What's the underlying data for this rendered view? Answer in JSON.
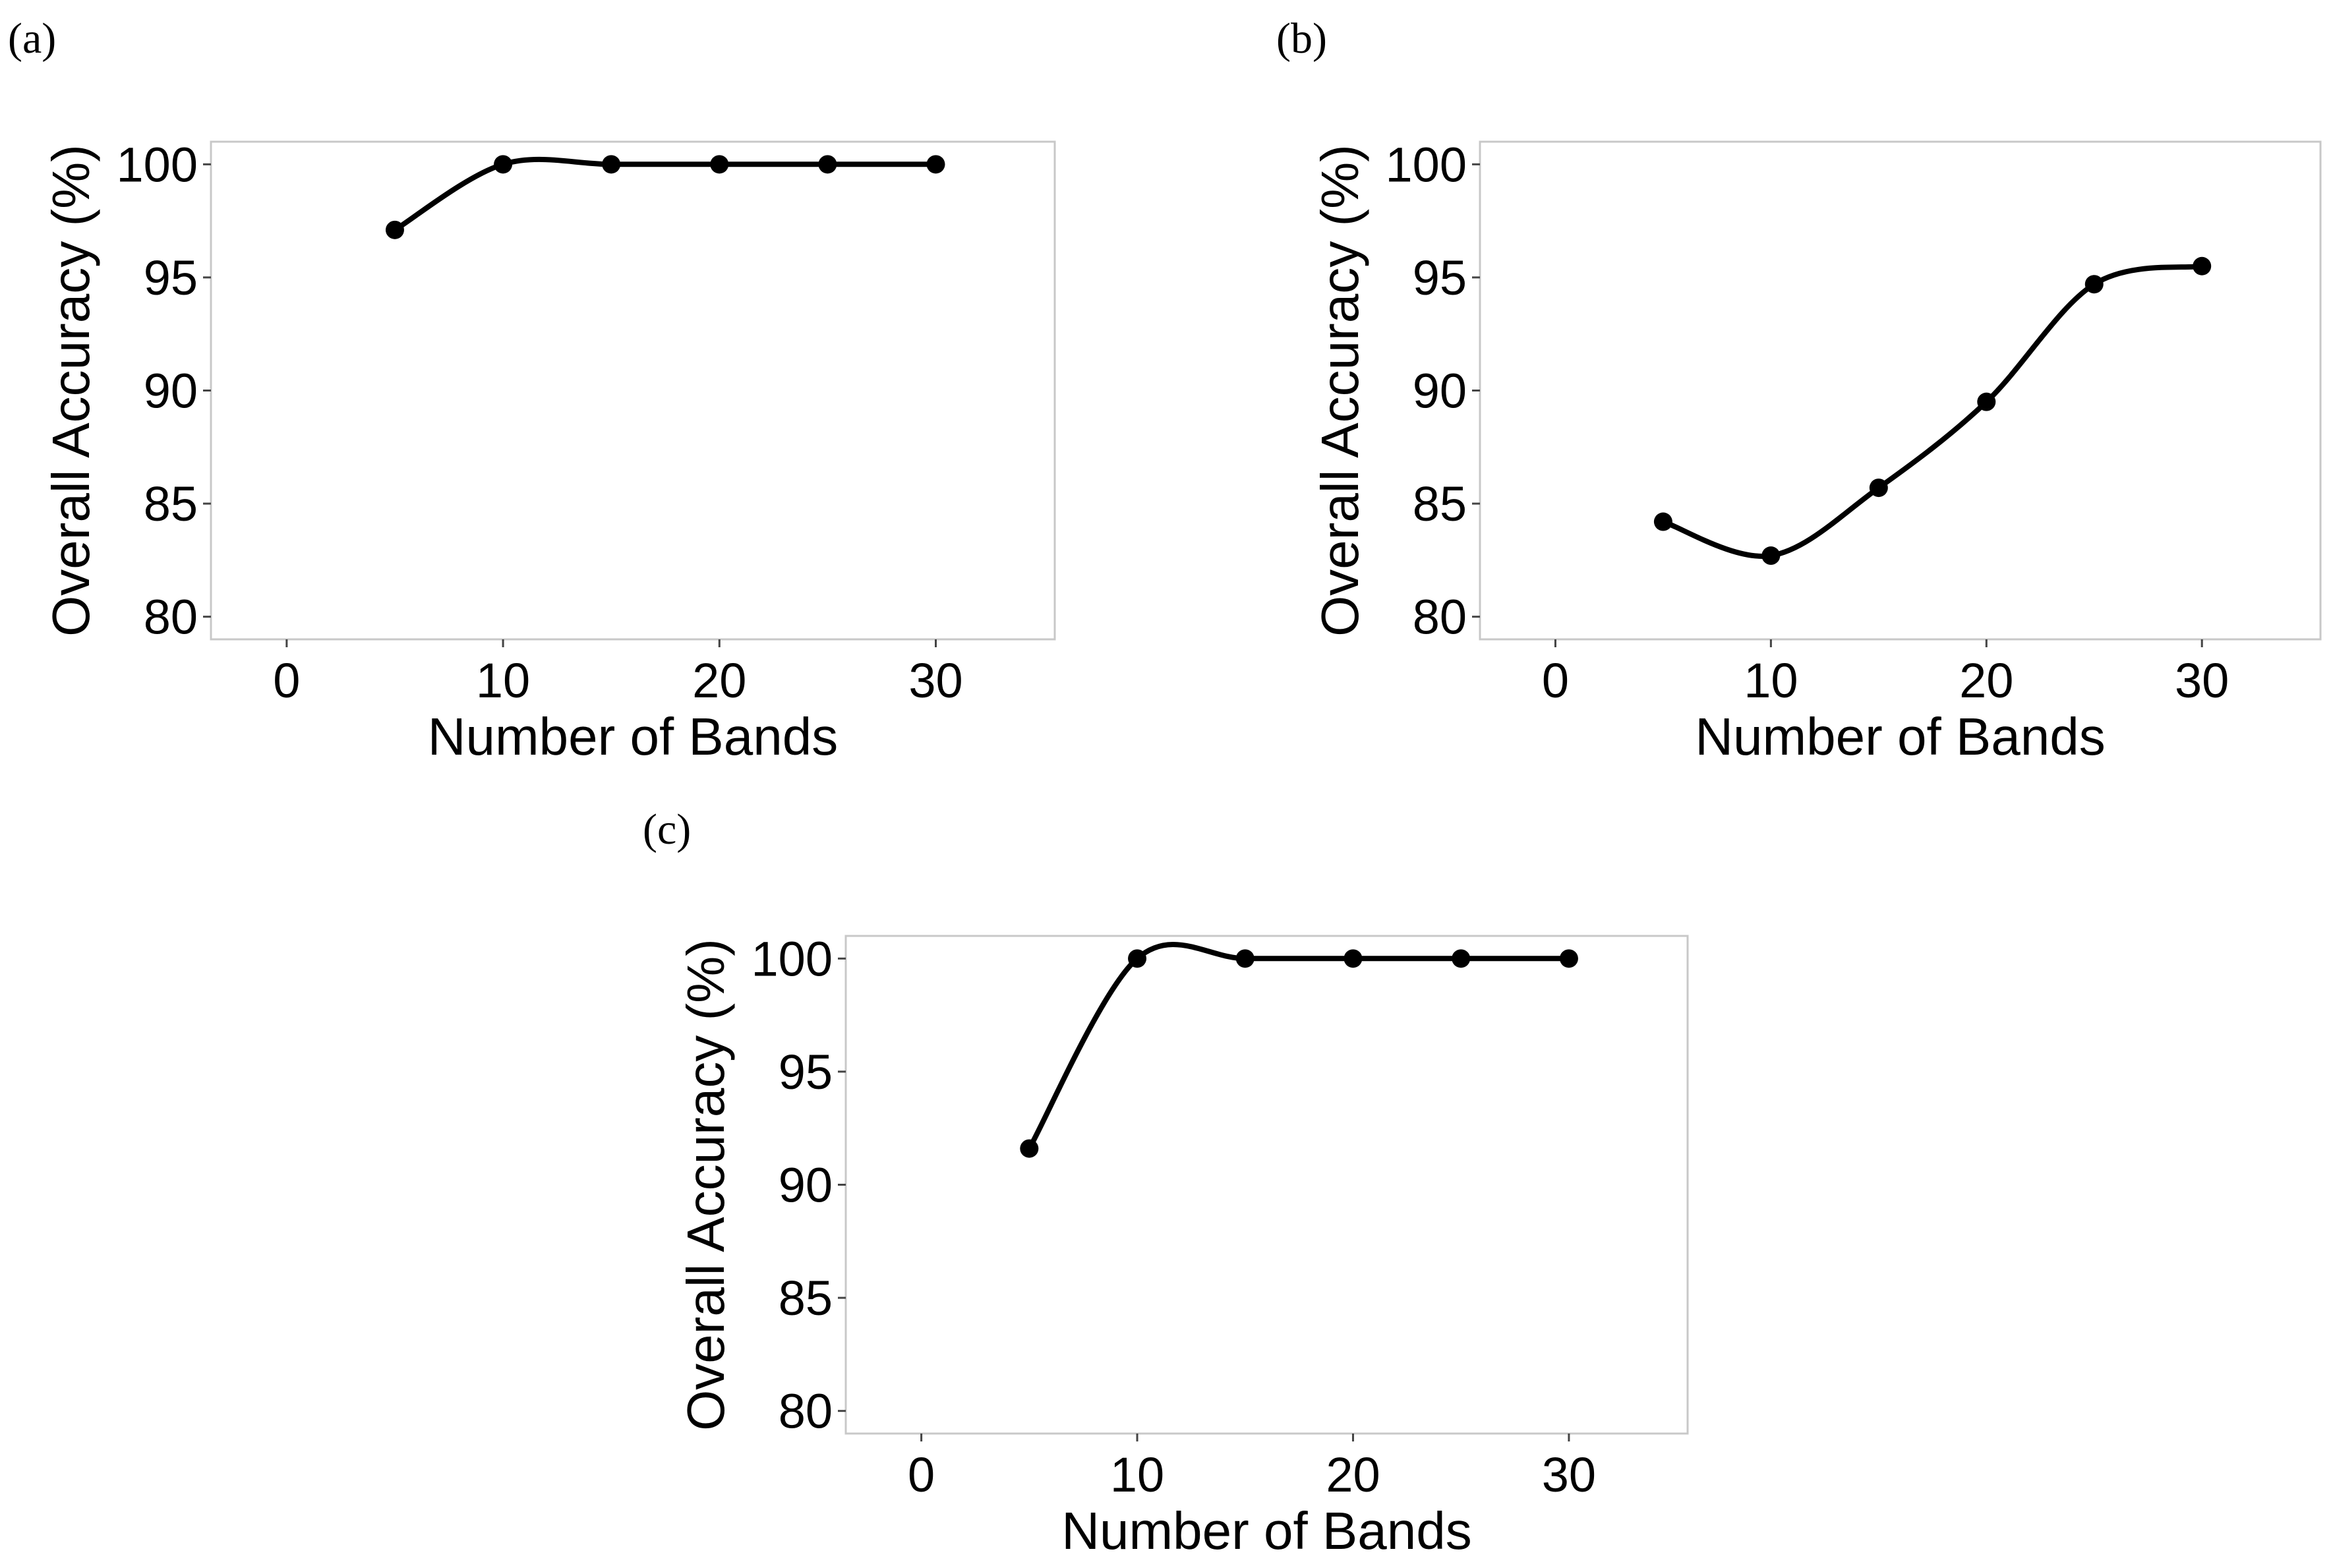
{
  "chart_data": [
    {
      "type": "scatter",
      "panel": "(a)",
      "xlabel": "Number of Bands",
      "ylabel": "Overall Accuracy (%)",
      "xlim": [
        -3.5,
        35.5
      ],
      "ylim": [
        79,
        101
      ],
      "xticks": [
        0,
        10,
        20,
        30
      ],
      "yticks": [
        80,
        85,
        90,
        95,
        100
      ],
      "x": [
        5,
        10,
        15,
        20,
        25,
        30
      ],
      "y": [
        97.1,
        100,
        100,
        100,
        100,
        100
      ],
      "trend": "smoothed fit line",
      "grid": false
    },
    {
      "type": "scatter",
      "panel": "(b)",
      "xlabel": "Number of Bands",
      "ylabel": "Overall Accuracy (%)",
      "xlim": [
        -3.5,
        35.5
      ],
      "ylim": [
        79,
        101
      ],
      "xticks": [
        0,
        10,
        20,
        30
      ],
      "yticks": [
        80,
        85,
        90,
        95,
        100
      ],
      "x": [
        5,
        10,
        15,
        20,
        25,
        30
      ],
      "y": [
        84.2,
        82.7,
        85.7,
        89.5,
        94.7,
        95.5
      ],
      "trend": "smoothed fit line",
      "grid": false
    },
    {
      "type": "scatter",
      "panel": "(c)",
      "xlabel": "Number of Bands",
      "ylabel": "Overall Accuracy (%)",
      "xlim": [
        -3.5,
        35.5
      ],
      "ylim": [
        79,
        101
      ],
      "xticks": [
        0,
        10,
        20,
        30
      ],
      "yticks": [
        80,
        85,
        90,
        95,
        100
      ],
      "x": [
        5,
        10,
        15,
        20,
        25,
        30
      ],
      "y": [
        91.6,
        100,
        100,
        100,
        100,
        100
      ],
      "trend": "smoothed fit line",
      "grid": false
    }
  ]
}
